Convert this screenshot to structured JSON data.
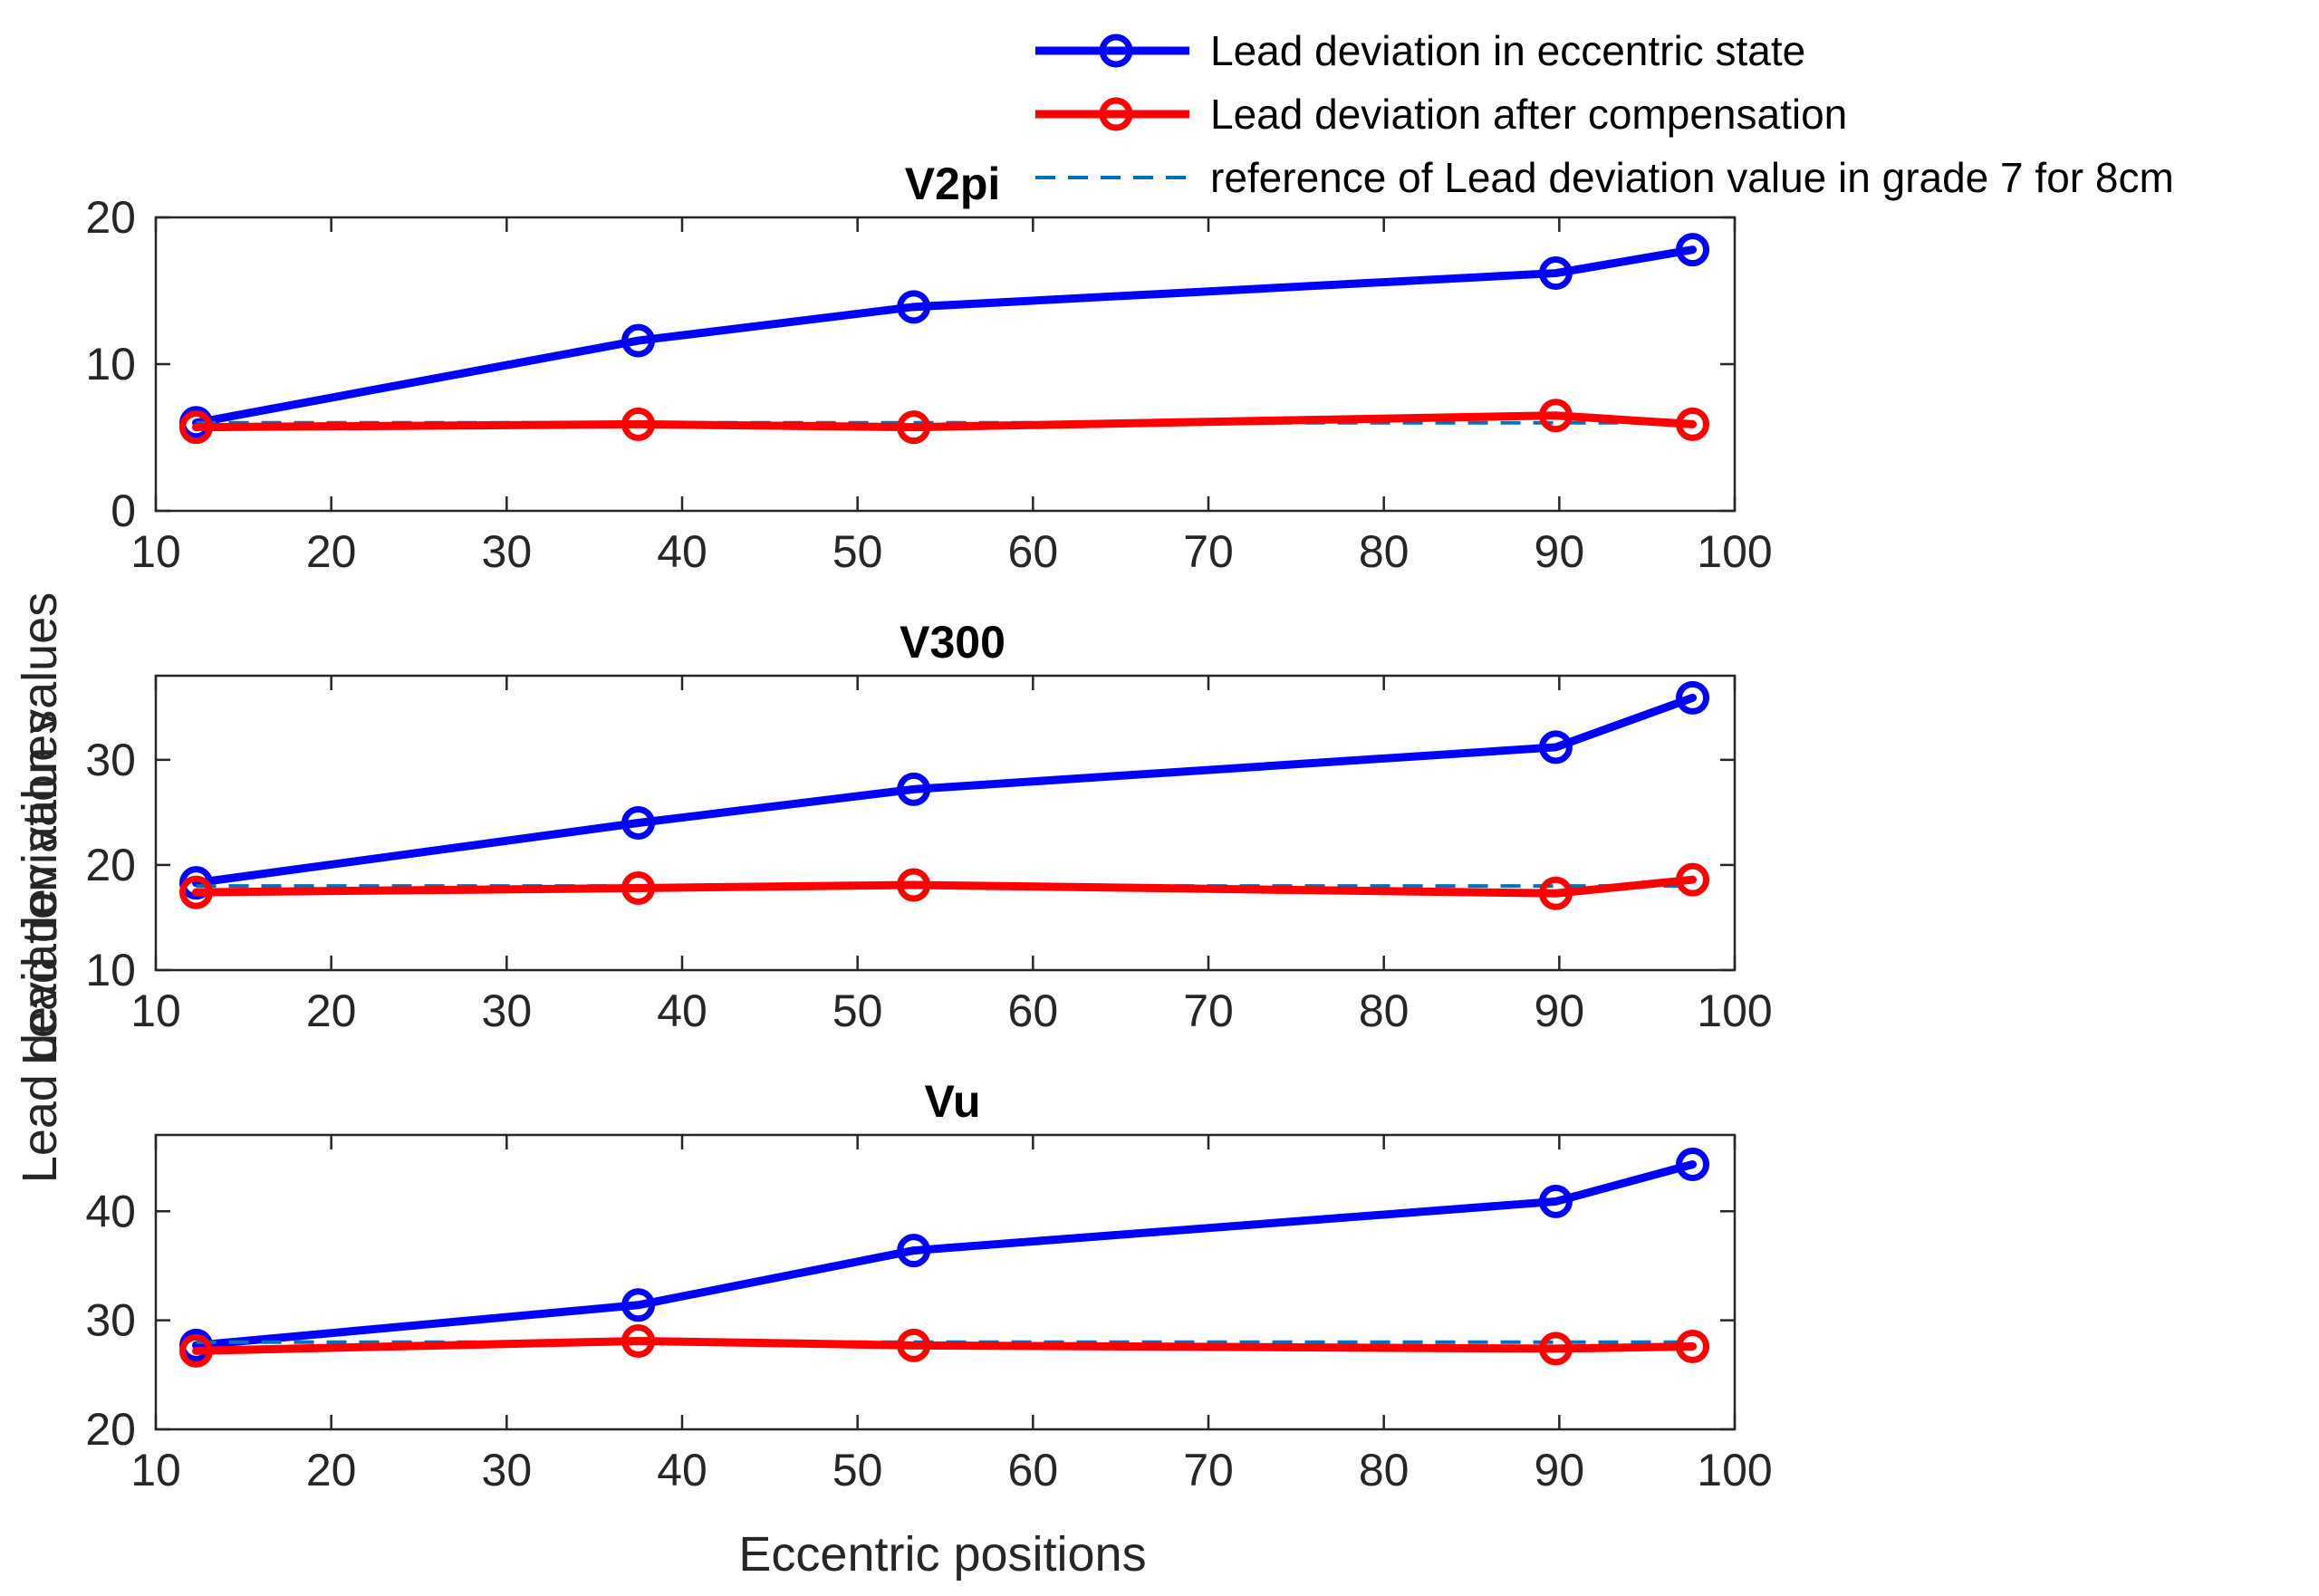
{
  "chart_data": {
    "type": "line",
    "xlabel": "Eccentric positions",
    "ylabel": "Lead deviation values",
    "ylabel_overlap": "Lead deviation values",
    "xlim": [
      10,
      100
    ],
    "xticks": [
      10,
      20,
      30,
      40,
      50,
      60,
      70,
      80,
      90,
      100
    ],
    "x": [
      12.3,
      37.5,
      53.2,
      89.8,
      97.6
    ],
    "legend": {
      "placement": "top-right",
      "entries": [
        {
          "name": "Lead deviation in eccentric state",
          "color": "#0000ff",
          "style": "solid",
          "marker": "circle"
        },
        {
          "name": "Lead deviation after compensation",
          "color": "#ff0000",
          "style": "solid",
          "marker": "circle"
        },
        {
          "name": "reference of Lead deviation value in grade 7 for 8cm",
          "color": "#0072bd",
          "style": "dashed",
          "marker": "none"
        }
      ]
    },
    "subplots": [
      {
        "title": "V2pi",
        "ylim": [
          0,
          20
        ],
        "yticks": [
          0,
          10,
          20
        ],
        "series": [
          {
            "name": "Lead deviation in eccentric state",
            "values": [
              6.0,
              11.6,
              13.9,
              16.2,
              17.8
            ]
          },
          {
            "name": "Lead deviation after compensation",
            "values": [
              5.7,
              5.9,
              5.7,
              6.5,
              5.9
            ]
          },
          {
            "name": "reference of Lead deviation value in grade 7 for 8cm",
            "values": [
              6,
              6,
              6,
              6,
              6
            ]
          }
        ]
      },
      {
        "title": "V300",
        "ylim": [
          10,
          38
        ],
        "yticks": [
          10,
          20,
          30
        ],
        "series": [
          {
            "name": "Lead deviation in eccentric state",
            "values": [
              18.3,
              24.0,
              27.2,
              31.2,
              35.9
            ]
          },
          {
            "name": "Lead deviation after compensation",
            "values": [
              17.4,
              17.8,
              18.1,
              17.3,
              18.6
            ]
          },
          {
            "name": "reference of Lead deviation value in grade 7 for 8cm",
            "values": [
              18,
              18,
              18,
              18,
              18
            ]
          }
        ]
      },
      {
        "title": "Vu",
        "ylim": [
          20,
          47
        ],
        "yticks": [
          20,
          30,
          40
        ],
        "series": [
          {
            "name": "Lead deviation in eccentric state",
            "values": [
              27.7,
              31.4,
              36.4,
              40.9,
              44.3
            ]
          },
          {
            "name": "Lead deviation after compensation",
            "values": [
              27.2,
              28.1,
              27.7,
              27.4,
              27.6
            ]
          },
          {
            "name": "reference of Lead deviation value in grade 7 for 8cm",
            "values": [
              28,
              28,
              28,
              28,
              28
            ]
          }
        ]
      }
    ]
  }
}
